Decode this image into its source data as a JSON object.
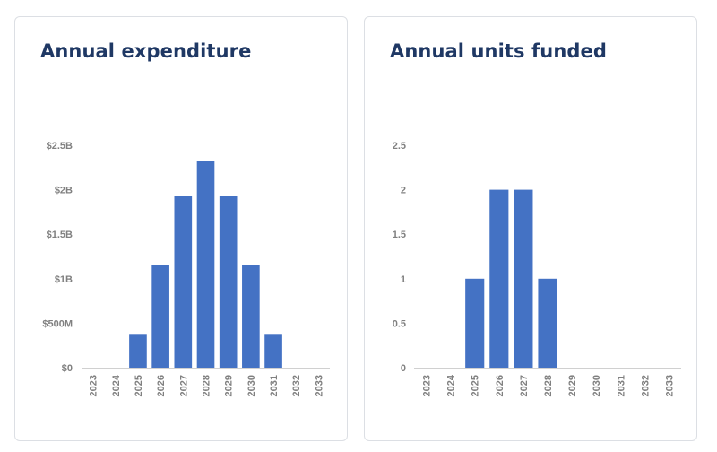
{
  "chart_data": [
    {
      "type": "bar",
      "title": "Annual expenditure",
      "categories": [
        "2023",
        "2024",
        "2025",
        "2026",
        "2027",
        "2028",
        "2029",
        "2030",
        "2031",
        "2032",
        "2033"
      ],
      "values": [
        0,
        0,
        380000000,
        1150000000,
        1930000000,
        2320000000,
        1930000000,
        1150000000,
        380000000,
        0,
        0
      ],
      "ylim": [
        0,
        2500000000
      ],
      "yticks": [
        0,
        500000000,
        1000000000,
        1500000000,
        2000000000,
        2500000000
      ],
      "ytick_labels": [
        "$0",
        "$500M",
        "$1B",
        "$1.5B",
        "$2B",
        "$2.5B"
      ],
      "xlabel": "",
      "ylabel": "",
      "grid": false,
      "bar_color": "#4472c4"
    },
    {
      "type": "bar",
      "title": "Annual units funded",
      "categories": [
        "2023",
        "2024",
        "2025",
        "2026",
        "2027",
        "2028",
        "2029",
        "2030",
        "2031",
        "2032",
        "2033"
      ],
      "values": [
        0,
        0,
        1,
        2,
        2,
        1,
        0,
        0,
        0,
        0,
        0
      ],
      "ylim": [
        0,
        2.5
      ],
      "yticks": [
        0,
        0.5,
        1,
        1.5,
        2,
        2.5
      ],
      "ytick_labels": [
        "0",
        "0.5",
        "1",
        "1.5",
        "2",
        "2.5"
      ],
      "xlabel": "",
      "ylabel": "",
      "grid": false,
      "bar_color": "#4472c4"
    }
  ]
}
